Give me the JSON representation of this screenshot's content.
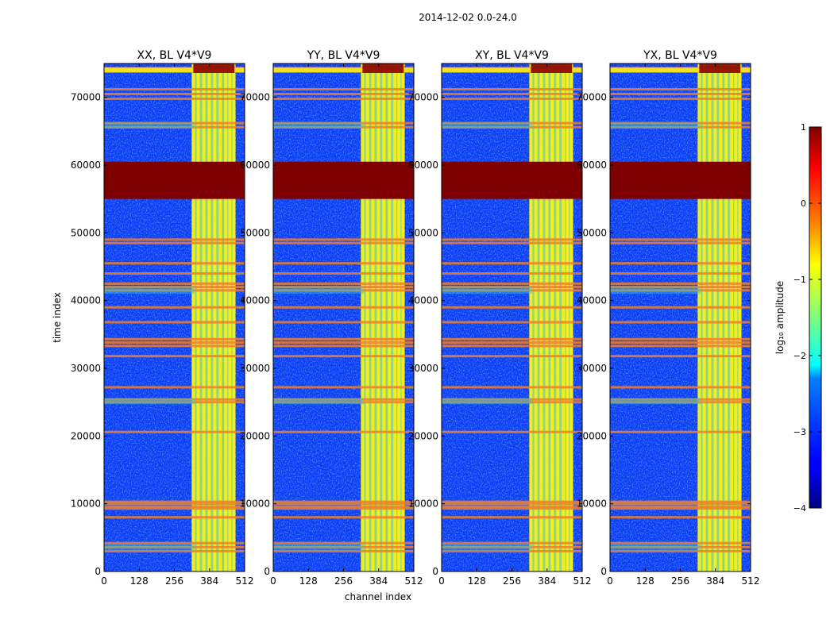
{
  "figure": {
    "suptitle": "2014-12-02 0.0-24.0"
  },
  "chart_data": {
    "type": "heatmap",
    "xlabel": "channel index",
    "ylabel": "time index",
    "xlim": [
      0,
      512
    ],
    "ylim": [
      0,
      75000
    ],
    "x_ticks": [
      0,
      128,
      256,
      384,
      512
    ],
    "y_ticks": [
      0,
      10000,
      20000,
      30000,
      40000,
      50000,
      60000,
      70000
    ],
    "colormap": "jet",
    "panels": [
      {
        "title": "XX, BL V4*V9",
        "pol": "XX"
      },
      {
        "title": "YY, BL V4*V9",
        "pol": "YY"
      },
      {
        "title": "XY, BL V4*V9",
        "pol": "XY"
      },
      {
        "title": "YX, BL V4*V9",
        "pol": "YX"
      }
    ],
    "rfi_channel_band": [
      325,
      475
    ],
    "rfi_channel_lines": [
      325,
      343,
      363,
      383,
      403,
      423,
      443,
      458,
      473
    ],
    "flagged_time_range": [
      55000,
      60500
    ],
    "time_lines": [
      3000,
      3600,
      4200,
      8000,
      9300,
      9600,
      10000,
      10300,
      20600,
      25000,
      25400,
      27200,
      31800,
      33300,
      33800,
      34300,
      36800,
      39000,
      41500,
      42000,
      42500,
      44000,
      45500,
      48500,
      49000,
      65600,
      66200,
      69800,
      70500,
      71200,
      73800,
      74300
    ],
    "colorbar": {
      "label": "log₁₀ amplitude",
      "ticks": [
        1,
        0,
        -1,
        -2,
        -3,
        -4
      ],
      "tick_labels": [
        "1",
        "0",
        "−1",
        "−2",
        "−3",
        "−4"
      ],
      "range": [
        -4,
        1
      ]
    }
  }
}
